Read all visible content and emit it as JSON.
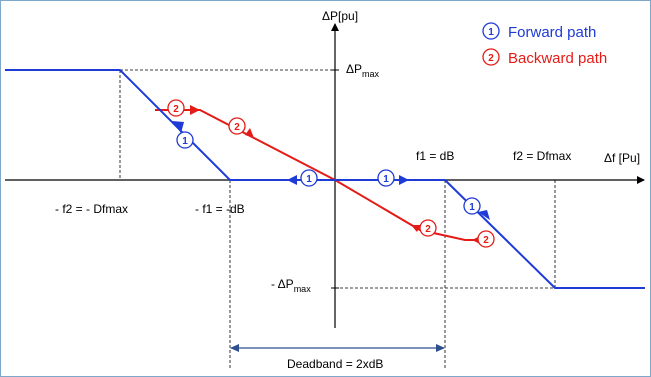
{
  "axes": {
    "y_label": "ΔP[pu]",
    "x_label": "Δf [Pu]"
  },
  "labels": {
    "dp_max_delta": "ΔP",
    "dp_max_sub": "max",
    "neg_dp_max_prefix": "- ΔP",
    "neg_dp_max_sub": "max",
    "f1_pos": "f1 = dB",
    "f2_pos": "f2 = Dfmax",
    "f2_neg": "- f2 = - Dfmax",
    "f1_neg": "- f1 = -dB",
    "deadband": "Deadband  = 2xdB"
  },
  "legend": {
    "forward": {
      "marker": "1",
      "label": "Forward path",
      "color": "#1f3bd6"
    },
    "backward": {
      "marker": "2",
      "label": "Backward path",
      "color": "#e41b17"
    }
  },
  "colors": {
    "forward": "#1f3bd6",
    "backward": "#e41b17",
    "axis": "#000000",
    "deadband_arrow": "#2f4f8f"
  }
}
